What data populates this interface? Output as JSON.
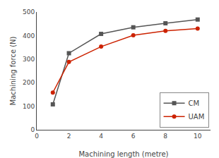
{
  "chart_data": {
    "type": "line",
    "x": [
      1,
      2,
      4,
      6,
      8,
      10
    ],
    "series": [
      {
        "name": "CM",
        "color": "#555555",
        "marker": "square",
        "values": [
          108,
          325,
          407,
          435,
          452,
          468
        ]
      },
      {
        "name": "UAM",
        "color": "#cc2200",
        "marker": "circle",
        "values": [
          158,
          288,
          353,
          401,
          420,
          430
        ]
      }
    ],
    "xlabel": "Machining length (metre)",
    "ylabel": "Machining force (N)",
    "xlim": [
      0,
      10.8
    ],
    "ylim": [
      0,
      500
    ],
    "xticks": [
      0,
      2,
      4,
      6,
      8,
      10
    ],
    "yticks": [
      0,
      100,
      200,
      300,
      400,
      500
    ],
    "grid": false,
    "legend": "lower right"
  }
}
